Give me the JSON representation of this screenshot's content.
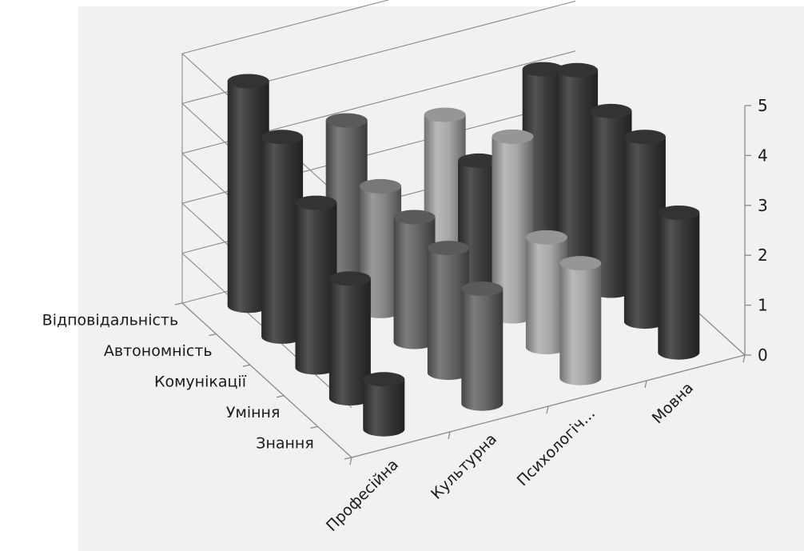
{
  "chart_data": {
    "type": "bar",
    "subtype": "3d-cylinder",
    "title": "",
    "x_categories": [
      "Професійна",
      "Культурна",
      "Психологіч...",
      "Мовна"
    ],
    "depth_categories": [
      "Знання",
      "Уміння",
      "Комунікації",
      "Автономність",
      "Відповідальність"
    ],
    "z_ticks": [
      "0",
      "1",
      "2",
      "3",
      "4",
      "5"
    ],
    "zlim": [
      0,
      5
    ],
    "grid": true,
    "legend": "none",
    "series": [
      {
        "name": "Знання",
        "values": [
          1.0,
          2.3,
          2.3,
          2.8
        ],
        "color": "#3c3c3c"
      },
      {
        "name": "Уміння",
        "values": [
          2.4,
          2.5,
          2.2,
          3.7
        ],
        "color": "#6a6a6a"
      },
      {
        "name": "Комунікації",
        "values": [
          3.3,
          2.5,
          3.6,
          3.6
        ],
        "color": "#b0b0b0"
      },
      {
        "name": "Автономність",
        "values": [
          4.0,
          2.5,
          2.5,
          3.8
        ],
        "color": "#3c3c3c"
      },
      {
        "name": "Відповідальність",
        "values": [
          4.5,
          3.2,
          2.8,
          3.2
        ],
        "color": "#3c3c3c"
      }
    ],
    "bar_colors": [
      [
        "#3c3c3c",
        "#6a6a6a",
        "#b0b0b0",
        "#3c3c3c"
      ],
      [
        "#3c3c3c",
        "#6a6a6a",
        "#b0b0b0",
        "#3c3c3c"
      ],
      [
        "#3c3c3c",
        "#6a6a6a",
        "#b0b0b0",
        "#3c3c3c"
      ],
      [
        "#3c3c3c",
        "#8c8c8c",
        "#3c3c3c",
        "#3c3c3c"
      ],
      [
        "#3c3c3c",
        "#6a6a6a",
        "#b0b0b0",
        "#3c3c3c"
      ]
    ],
    "colors": {
      "background": "#f1f1f1",
      "grid": "#8a8a8a",
      "text": "#1a1a1a"
    }
  }
}
